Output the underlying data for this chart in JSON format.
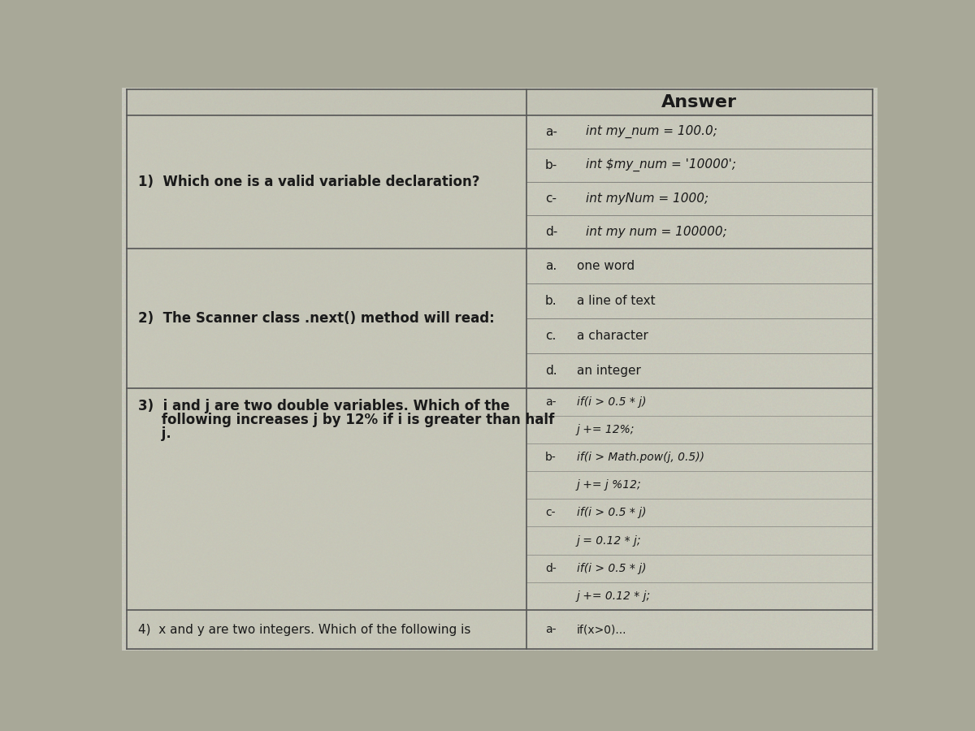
{
  "bg_color": "#b8b8a8",
  "cell_bg": "#c8c8b8",
  "cell_bg_light": "#d0d0c0",
  "border_color": "#555555",
  "text_color": "#1a1a1a",
  "header_text": "Answer",
  "col_split": 0.535,
  "fig_bg": "#a8a898",
  "row1_q": "1)  Which one is a valid variable declaration?",
  "row2_q": "2)  The Scanner class .next() method will read:",
  "row3_q_line1": "3)  i and j are two double variables. Which of the",
  "row3_q_line2": "     following increases j by 12% if i is greater than half",
  "row3_q_line3": "     j.",
  "row4_q": "4)  x and y are two integers. Which of the following is",
  "row1_answers": [
    [
      "a-",
      "int my_num = 100.0;"
    ],
    [
      "b-",
      "int $my_num = '10000';"
    ],
    [
      "c-",
      "int myNum = 1000;"
    ],
    [
      "d-",
      "int my num = 100000;"
    ]
  ],
  "row2_answers": [
    [
      "a.",
      "one word"
    ],
    [
      "b.",
      "a line of text"
    ],
    [
      "c.",
      "a character"
    ],
    [
      "d.",
      "an integer"
    ]
  ],
  "row3_answers": [
    [
      "a-",
      "if(i > 0.5 * j)"
    ],
    [
      "",
      "j += 12%;"
    ],
    [
      "b-",
      "if(i > Math.pow(j, 0.5))"
    ],
    [
      "",
      "j += j %12;"
    ],
    [
      "c-",
      "if(i > 0.5 * j)"
    ],
    [
      "",
      "j = 0.12 * j;"
    ],
    [
      "d-",
      "if(i > 0.5 * j)"
    ],
    [
      "",
      "j += 0.12 * j;"
    ]
  ],
  "row4_answers": [
    [
      "a-",
      "if(x>0)..."
    ]
  ],
  "header_fontsize": 16,
  "q_fontsize": 12,
  "ans_fontsize": 11,
  "small_fontsize": 10
}
